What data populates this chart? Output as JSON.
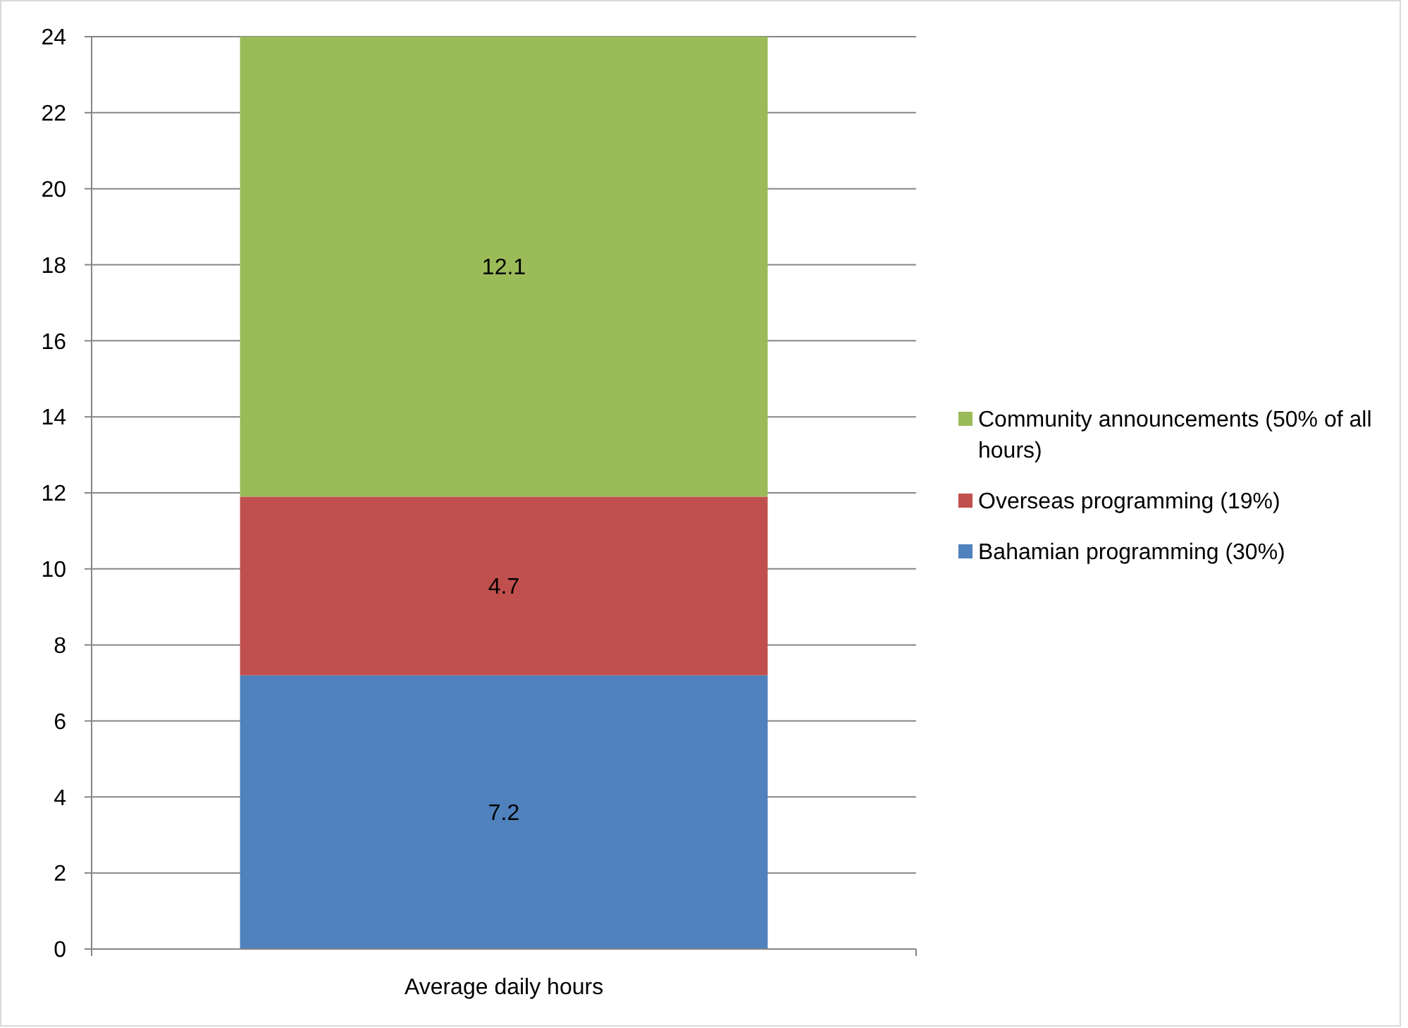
{
  "chart_data": {
    "type": "bar",
    "stacked": true,
    "categories": [
      "Average daily hours"
    ],
    "series": [
      {
        "name": "Bahamian programming (30%)",
        "color": "#4f81bd",
        "values": [
          7.2
        ]
      },
      {
        "name": "Overseas programming (19%)",
        "color": "#c0504d",
        "values": [
          4.7
        ]
      },
      {
        "name": "Community announcements (50% of all hours)",
        "color": "#9bbb59",
        "values": [
          12.1
        ]
      }
    ],
    "ylim": [
      0,
      24
    ],
    "yticks": [
      0,
      2,
      4,
      6,
      8,
      10,
      12,
      14,
      16,
      18,
      20,
      22,
      24
    ],
    "grid": "y",
    "legend": "right",
    "data_labels": true
  }
}
